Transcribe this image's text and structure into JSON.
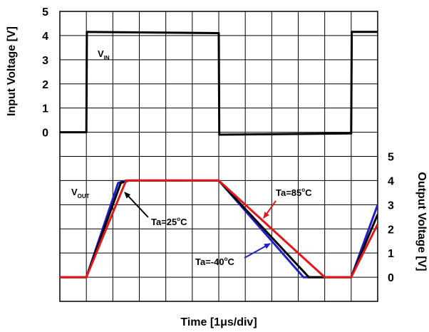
{
  "chart_data": {
    "type": "line",
    "xlabel": "Time [1μs/div]",
    "ylabel_left": "Input Voltage [V]",
    "ylabel_right": "Output Voltage [V]",
    "left_ticks": [
      "5",
      "4",
      "3",
      "2",
      "1",
      "0"
    ],
    "right_ticks": [
      "5",
      "4",
      "3",
      "2",
      "1",
      "0"
    ],
    "grid": true,
    "x_divisions": 12,
    "ylim_left": [
      -7,
      5
    ],
    "ylim_right": [
      -1,
      11
    ],
    "series": [
      {
        "name": "VIN",
        "axis": "left",
        "color": "#000000",
        "x": [
          0,
          1,
          1.02,
          6,
          6.02,
          11,
          11.02,
          12
        ],
        "y": [
          0,
          0,
          4.15,
          4.1,
          -0.1,
          -0.05,
          4.15,
          4.15
        ]
      },
      {
        "name": "VOUT Ta=25°C",
        "axis": "right",
        "color": "#000000",
        "x": [
          0,
          1,
          2.3,
          2.6,
          6,
          9.4,
          11,
          12
        ],
        "y": [
          0,
          0,
          3.9,
          4.0,
          4.0,
          0,
          0,
          2.6
        ]
      },
      {
        "name": "VOUT Ta=-40°C",
        "axis": "right",
        "color": "#1f1fd0",
        "x": [
          0,
          1,
          2.2,
          2.5,
          6,
          9.2,
          11,
          12
        ],
        "y": [
          0,
          0,
          3.9,
          4.0,
          4.0,
          0,
          0,
          3.0
        ]
      },
      {
        "name": "VOUT Ta=85°C",
        "axis": "right",
        "color": "#e01818",
        "x": [
          0,
          1,
          2.5,
          2.7,
          6,
          10,
          11,
          12
        ],
        "y": [
          0,
          0,
          4.0,
          4.0,
          4.0,
          0,
          0,
          2.2
        ]
      }
    ],
    "annotations": {
      "vin": "V",
      "vin_sub": "IN",
      "vout": "V",
      "vout_sub": "OUT",
      "ta25": "Ta=25",
      "ta40": "Ta=-40",
      "ta85": "Ta=85",
      "deg_o": "o",
      "deg_c": "C"
    }
  }
}
